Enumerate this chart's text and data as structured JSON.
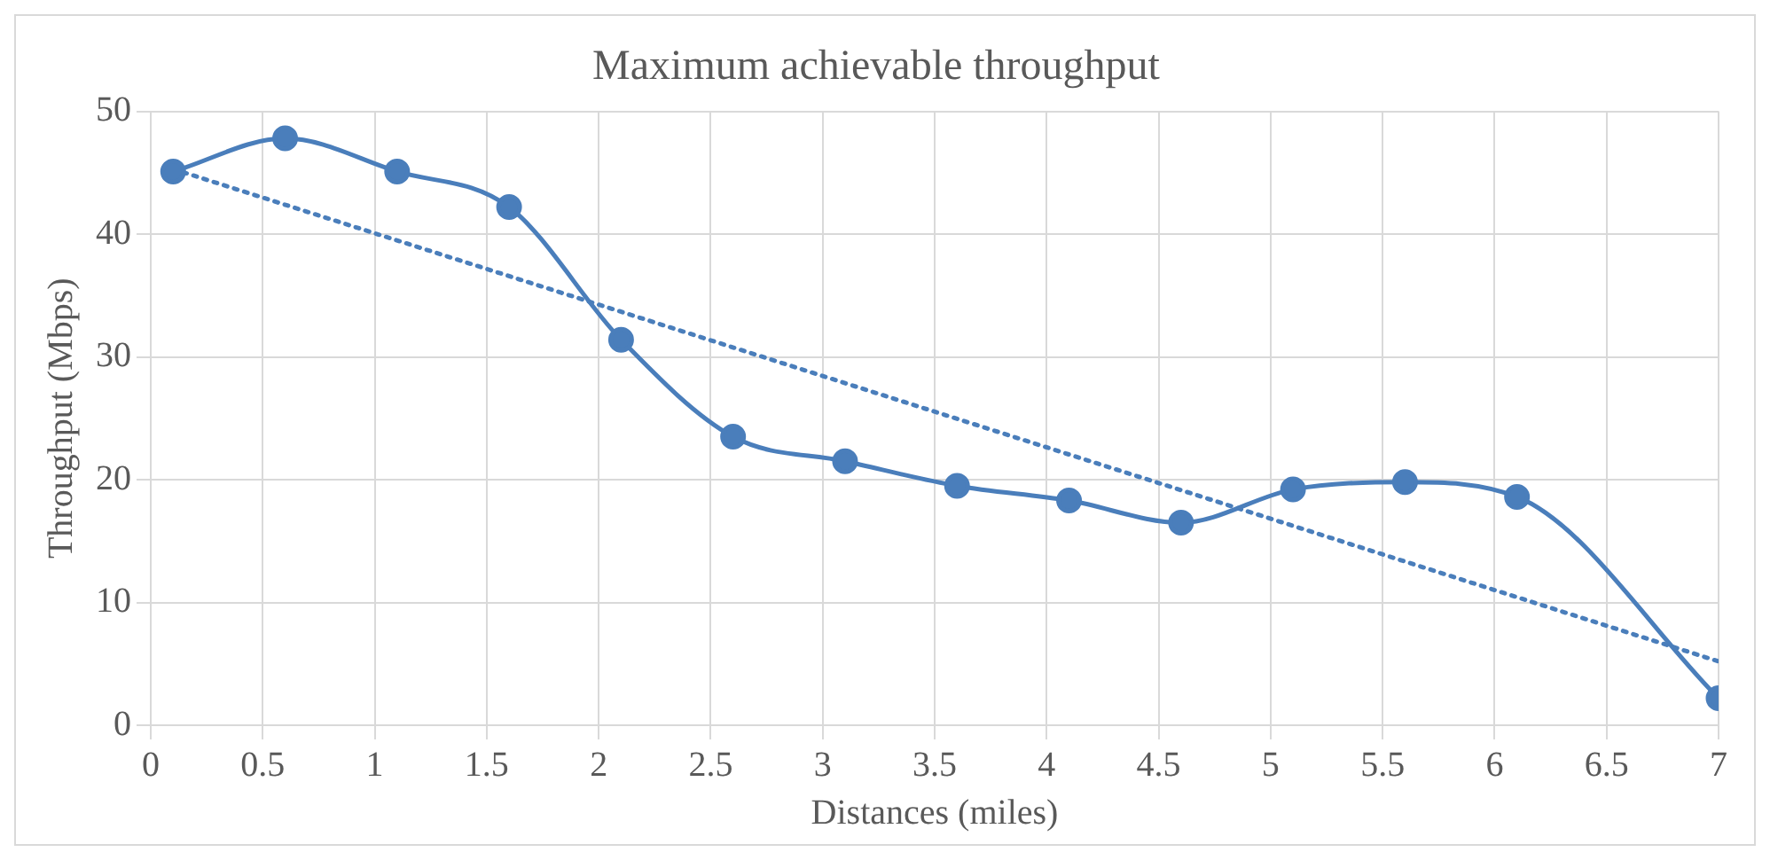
{
  "chart_data": {
    "type": "line",
    "title": "Maximum achievable throughput",
    "xlabel": "Distances (miles)",
    "ylabel": "Throughput (Mbps)",
    "x": [
      0.1,
      0.6,
      1.1,
      1.6,
      2.1,
      2.6,
      3.1,
      3.6,
      4.1,
      4.6,
      5.1,
      5.6,
      6.1,
      7.0
    ],
    "series": [
      {
        "color": "#4a7ebb",
        "values": [
          45.1,
          47.8,
          45.1,
          42.2,
          31.4,
          23.5,
          21.5,
          19.5,
          18.3,
          16.5,
          19.2,
          19.8,
          18.6,
          2.2
        ],
        "marker": "circle",
        "line_style": "solid"
      },
      {
        "type": "line",
        "color": "#4a7ebb",
        "x": [
          0.1,
          7.0
        ],
        "values": [
          45.3,
          5.2
        ],
        "marker": "none",
        "line_style": "dotted"
      }
    ],
    "xlim": [
      0,
      7
    ],
    "xticks": [
      0,
      0.5,
      1,
      1.5,
      2,
      2.5,
      3,
      3.5,
      4,
      4.5,
      5,
      5.5,
      6,
      6.5,
      7
    ],
    "ylim": [
      0,
      50
    ],
    "yticks": [
      0,
      10,
      20,
      30,
      40,
      50
    ],
    "grid": true,
    "legend": false
  }
}
